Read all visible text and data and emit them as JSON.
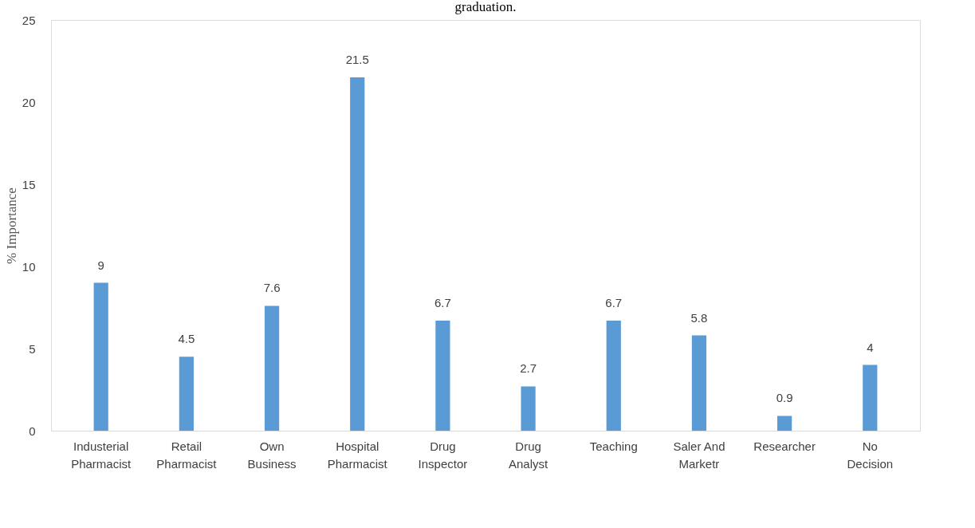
{
  "chart_data": {
    "type": "bar",
    "title": "graduation.",
    "ylabel": "% Importance",
    "categories": [
      "Industerial\nPharmacist",
      "Retail\nPharmacist",
      "Own\nBusiness",
      "Hospital\nPharmacist",
      "Drug\nInspector",
      "Drug\nAnalyst",
      "Teaching",
      "Saler And\nMarketr",
      "Researcher",
      "No\nDecision"
    ],
    "values": [
      9,
      4.5,
      7.6,
      21.5,
      6.7,
      2.7,
      6.7,
      5.8,
      0.9,
      4
    ],
    "color": "#5b9bd5",
    "ylim": [
      0,
      25
    ],
    "yticks": [
      0,
      5,
      10,
      15,
      20,
      25
    ],
    "grid": false,
    "data_labels": true
  }
}
